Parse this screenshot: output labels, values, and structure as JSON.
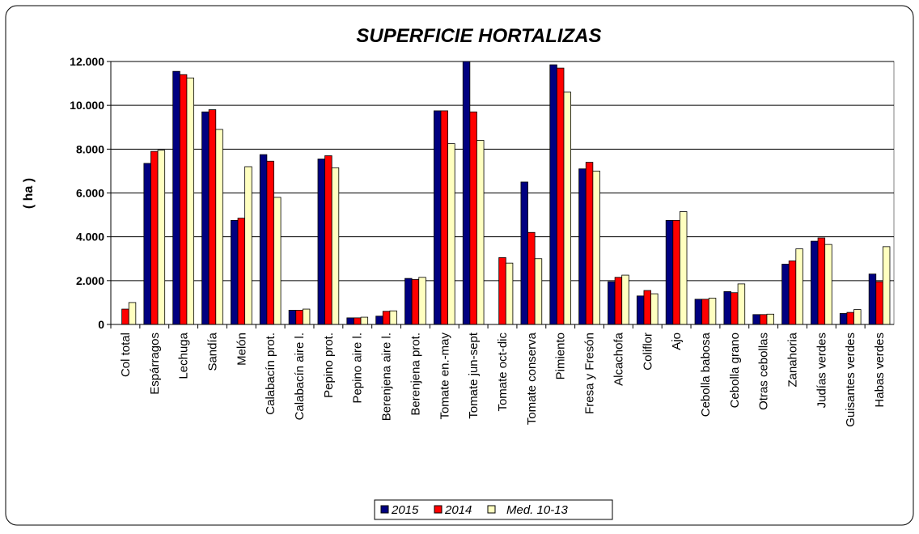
{
  "chart_data": {
    "type": "bar",
    "title": "SUPERFICIE HORTALIZAS",
    "y_label": "( ha )",
    "categories": [
      "Col total",
      "Espárragos",
      "Lechuga",
      "Sandía",
      "Melón",
      "Calabacín prot.",
      "Calabacín aire l.",
      "Pepino prot.",
      "Pepino aire l.",
      "Berenjena aire l.",
      "Berenjena prot.",
      "Tomate en.-may",
      "Tomate jun-sept",
      "Tomate oct-dic",
      "Tomate conserva",
      "Pimiento",
      "Fresa y Fresón",
      "Alcachofa",
      "Coliflor",
      "Ajo",
      "Cebolla babosa",
      "Cebolla grano",
      "Otras cebollas",
      "Zanahoria",
      "Judías verdes",
      "Guisantes verdes",
      "Habas verdes"
    ],
    "series": [
      {
        "name": "2015",
        "color": "#000080",
        "values": [
          null,
          7350,
          11550,
          9700,
          4750,
          7750,
          650,
          7550,
          300,
          380,
          2100,
          9750,
          12000,
          null,
          6500,
          11850,
          7100,
          1950,
          1300,
          4750,
          1150,
          1500,
          450,
          2750,
          3800,
          500,
          2300
        ]
      },
      {
        "name": "2014",
        "color": "#ff0000",
        "values": [
          700,
          7900,
          11400,
          9800,
          4850,
          7450,
          650,
          7700,
          300,
          600,
          2050,
          9750,
          9700,
          3050,
          4200,
          11700,
          7400,
          2150,
          1550,
          4750,
          1150,
          1450,
          450,
          2900,
          3950,
          550,
          1950
        ]
      },
      {
        "name": "Med. 10-13",
        "color": "#ffffc0",
        "values": [
          1000,
          7950,
          11250,
          8900,
          7200,
          5800,
          700,
          7150,
          330,
          620,
          2150,
          8250,
          8400,
          2800,
          3000,
          10600,
          7000,
          2250,
          1400,
          5150,
          1200,
          1850,
          470,
          3450,
          3650,
          680,
          3550
        ]
      }
    ],
    "ylim": [
      0,
      12000
    ],
    "yticks": [
      0,
      {
        "value": 2000,
        "label": "2.000"
      },
      {
        "value": 4000,
        "label": "4.000"
      },
      {
        "value": 6000,
        "label": "6.000"
      },
      {
        "value": 8000,
        "label": "8.000"
      },
      {
        "value": 10000,
        "label": "10.000"
      },
      {
        "value": 12000,
        "label": "12.000"
      }
    ],
    "grid": true,
    "legend": "bottom"
  }
}
